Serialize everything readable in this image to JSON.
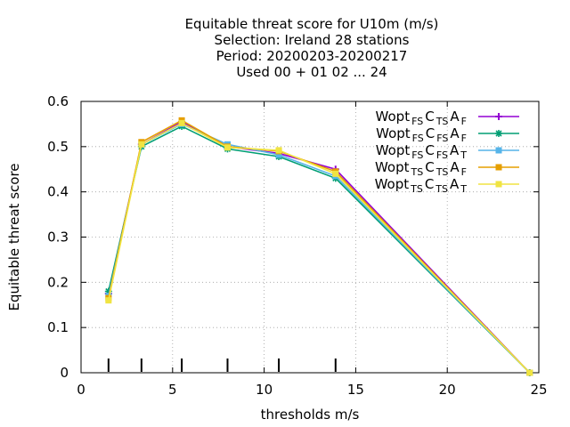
{
  "chart_data": {
    "type": "line",
    "title_lines": [
      "Equitable threat score  for U10m (m/s)",
      "Selection: Ireland     28 stations",
      "Period: 20200203-20200217",
      "Used  00 + 01 02 ... 24"
    ],
    "xlabel": "thresholds m/s",
    "ylabel": "Equitable threat score",
    "xlim": [
      0,
      25
    ],
    "ylim": [
      0,
      0.6
    ],
    "xticks": [
      "0",
      "5",
      "10",
      "15",
      "20",
      "25"
    ],
    "yticks": [
      "0",
      "0.1",
      "0.2",
      "0.3",
      "0.4",
      "0.5",
      "0.6"
    ],
    "grid": true,
    "legend_position": "top-right",
    "threshold_markers": [
      1.5,
      3.3,
      5.5,
      8.0,
      10.8,
      13.9
    ],
    "series": [
      {
        "name": {
          "base": "Wopt",
          "sub1": "FS",
          "mid": "C",
          "sub2": "TS",
          "mid2": "A",
          "sub3": "F"
        },
        "color": "#9400d3",
        "marker": "plus",
        "x": [
          1.5,
          3.3,
          5.5,
          8.0,
          10.8,
          13.9,
          24.5
        ],
        "y": [
          0.175,
          0.505,
          0.555,
          0.5,
          0.485,
          0.45,
          0.0
        ]
      },
      {
        "name": {
          "base": "Wopt",
          "sub1": "FS",
          "mid": "C",
          "sub2": "FS",
          "mid2": "A",
          "sub3": "F"
        },
        "color": "#009e73",
        "marker": "star",
        "x": [
          1.5,
          3.3,
          5.5,
          8.0,
          10.8,
          13.9,
          24.5
        ],
        "y": [
          0.18,
          0.5,
          0.545,
          0.495,
          0.478,
          0.43,
          0.0
        ]
      },
      {
        "name": {
          "base": "Wopt",
          "sub1": "FS",
          "mid": "C",
          "sub2": "FS",
          "mid2": "A",
          "sub3": "T"
        },
        "color": "#56b4e9",
        "marker": "box",
        "x": [
          1.5,
          3.3,
          5.5,
          8.0,
          10.8,
          13.9,
          24.5
        ],
        "y": [
          0.17,
          0.505,
          0.55,
          0.505,
          0.482,
          0.435,
          0.0
        ]
      },
      {
        "name": {
          "base": "Wopt",
          "sub1": "TS",
          "mid": "C",
          "sub2": "TS",
          "mid2": "A",
          "sub3": "F"
        },
        "color": "#e69f00",
        "marker": "box",
        "x": [
          1.5,
          3.3,
          5.5,
          8.0,
          10.8,
          13.9,
          24.5
        ],
        "y": [
          0.165,
          0.51,
          0.558,
          0.5,
          0.49,
          0.445,
          0.0
        ]
      },
      {
        "name": {
          "base": "Wopt",
          "sub1": "TS",
          "mid": "C",
          "sub2": "TS",
          "mid2": "A",
          "sub3": "T"
        },
        "color": "#f0e442",
        "marker": "box",
        "x": [
          1.5,
          3.3,
          5.5,
          8.0,
          10.8,
          13.9,
          24.5
        ],
        "y": [
          0.16,
          0.505,
          0.552,
          0.498,
          0.492,
          0.44,
          0.0
        ]
      }
    ]
  }
}
